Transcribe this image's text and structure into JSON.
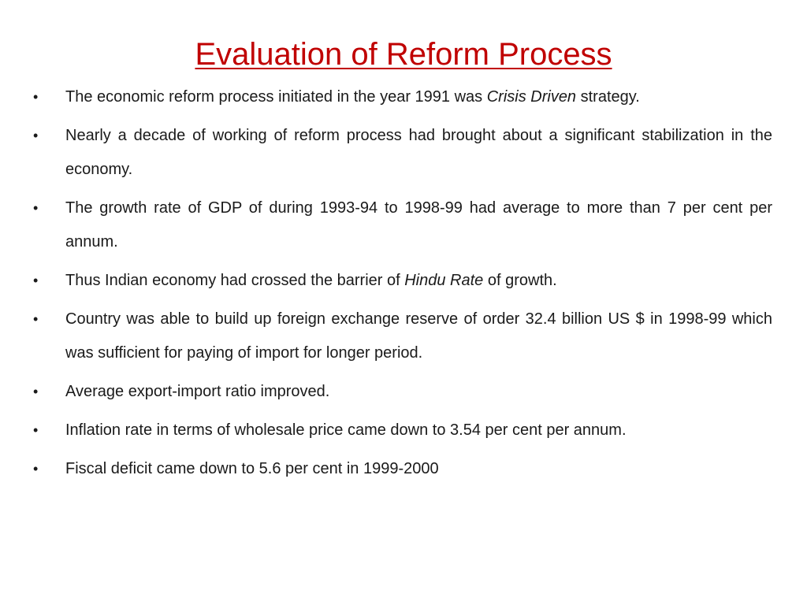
{
  "slide": {
    "title": "Evaluation of Reform Process",
    "bullet_glyph": "•",
    "bullets": [
      {
        "parts": [
          {
            "text": "The economic reform process initiated in the year 1991 was "
          },
          {
            "text": "Crisis Driven",
            "italic": true
          },
          {
            "text": " strategy."
          }
        ]
      },
      {
        "parts": [
          {
            "text": "Nearly a decade of working of reform process had brought about a significant stabilization in the economy."
          }
        ]
      },
      {
        "parts": [
          {
            "text": "The growth rate of GDP of during 1993-94 to 1998-99 had average to more than 7 per cent per annum."
          }
        ]
      },
      {
        "parts": [
          {
            "text": "Thus Indian economy had crossed the barrier of "
          },
          {
            "text": "Hindu Rate",
            "italic": true
          },
          {
            "text": " of growth."
          }
        ]
      },
      {
        "parts": [
          {
            "text": "Country was able to build up foreign exchange reserve of order 32.4 billion US $ in 1998-99 which was sufficient for paying of import for longer period."
          }
        ]
      },
      {
        "parts": [
          {
            "text": "Average export-import ratio improved."
          }
        ]
      },
      {
        "parts": [
          {
            "text": "Inflation rate in terms of wholesale price came down to 3.54 per cent per annum."
          }
        ]
      },
      {
        "parts": [
          {
            "text": "Fiscal deficit came down to 5.6 per cent in 1999-2000"
          }
        ]
      }
    ]
  },
  "colors": {
    "title": "#c00000",
    "text": "#1a1a1a",
    "background": "#ffffff"
  }
}
